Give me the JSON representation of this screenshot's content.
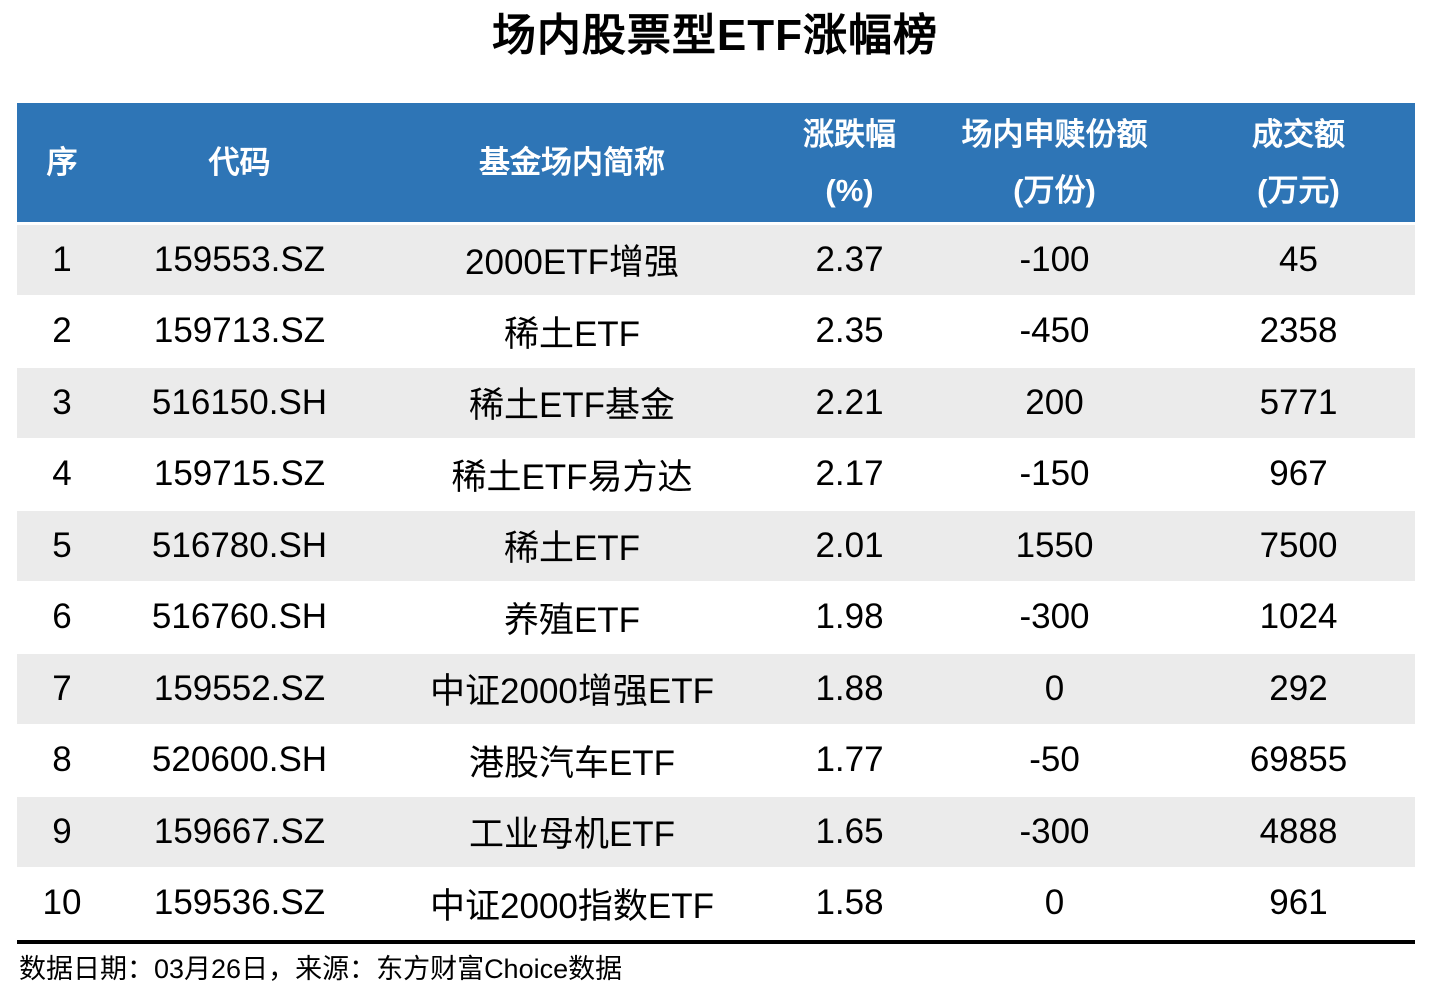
{
  "page": {
    "title": "场内股票型ETF涨幅榜",
    "footer": "数据日期：03月26日，来源：东方财富Choice数据"
  },
  "colors": {
    "header_bg": "#2E75B6",
    "header_text": "#FFFFFF",
    "row_alt_bg": "#EBEBEB",
    "body_text": "#000000"
  },
  "table": {
    "columns": [
      {
        "id": "seq",
        "label": "序",
        "unit": ""
      },
      {
        "id": "code",
        "label": "代码",
        "unit": ""
      },
      {
        "id": "name",
        "label": "基金场内简称",
        "unit": ""
      },
      {
        "id": "change",
        "label": "涨跌幅",
        "unit": "(%)"
      },
      {
        "id": "shares",
        "label": "场内申赎份额",
        "unit": "(万份)"
      },
      {
        "id": "turnover",
        "label": "成交额",
        "unit": "(万元)"
      }
    ],
    "rows": [
      {
        "seq": "1",
        "code": "159553.SZ",
        "name": "2000ETF增强",
        "change": "2.37",
        "shares": "-100",
        "turnover": "45"
      },
      {
        "seq": "2",
        "code": "159713.SZ",
        "name": "稀土ETF",
        "change": "2.35",
        "shares": "-450",
        "turnover": "2358"
      },
      {
        "seq": "3",
        "code": "516150.SH",
        "name": "稀土ETF基金",
        "change": "2.21",
        "shares": "200",
        "turnover": "5771"
      },
      {
        "seq": "4",
        "code": "159715.SZ",
        "name": "稀土ETF易方达",
        "change": "2.17",
        "shares": "-150",
        "turnover": "967"
      },
      {
        "seq": "5",
        "code": "516780.SH",
        "name": "稀土ETF",
        "change": "2.01",
        "shares": "1550",
        "turnover": "7500"
      },
      {
        "seq": "6",
        "code": "516760.SH",
        "name": "养殖ETF",
        "change": "1.98",
        "shares": "-300",
        "turnover": "1024"
      },
      {
        "seq": "7",
        "code": "159552.SZ",
        "name": "中证2000增强ETF",
        "change": "1.88",
        "shares": "0",
        "turnover": "292"
      },
      {
        "seq": "8",
        "code": "520600.SH",
        "name": "港股汽车ETF",
        "change": "1.77",
        "shares": "-50",
        "turnover": "69855"
      },
      {
        "seq": "9",
        "code": "159667.SZ",
        "name": "工业母机ETF",
        "change": "1.65",
        "shares": "-300",
        "turnover": "4888"
      },
      {
        "seq": "10",
        "code": "159536.SZ",
        "name": "中证2000指数ETF",
        "change": "1.58",
        "shares": "0",
        "turnover": "961"
      }
    ]
  },
  "chart_data": {
    "type": "table",
    "title": "场内股票型ETF涨幅榜",
    "columns": [
      "序",
      "代码",
      "基金场内简称",
      "涨跌幅(%)",
      "场内申赎份额(万份)",
      "成交额(万元)"
    ],
    "rows": [
      [
        1,
        "159553.SZ",
        "2000ETF增强",
        2.37,
        -100,
        45
      ],
      [
        2,
        "159713.SZ",
        "稀土ETF",
        2.35,
        -450,
        2358
      ],
      [
        3,
        "516150.SH",
        "稀土ETF基金",
        2.21,
        200,
        5771
      ],
      [
        4,
        "159715.SZ",
        "稀土ETF易方达",
        2.17,
        -150,
        967
      ],
      [
        5,
        "516780.SH",
        "稀土ETF",
        2.01,
        1550,
        7500
      ],
      [
        6,
        "516760.SH",
        "养殖ETF",
        1.98,
        -300,
        1024
      ],
      [
        7,
        "159552.SZ",
        "中证2000增强ETF",
        1.88,
        0,
        292
      ],
      [
        8,
        "520600.SH",
        "港股汽车ETF",
        1.77,
        -50,
        69855
      ],
      [
        9,
        "159667.SZ",
        "工业母机ETF",
        1.65,
        -300,
        4888
      ],
      [
        10,
        "159536.SZ",
        "中证2000指数ETF",
        1.58,
        0,
        961
      ]
    ],
    "source_note": "数据日期：03月26日，来源：东方财富Choice数据"
  }
}
